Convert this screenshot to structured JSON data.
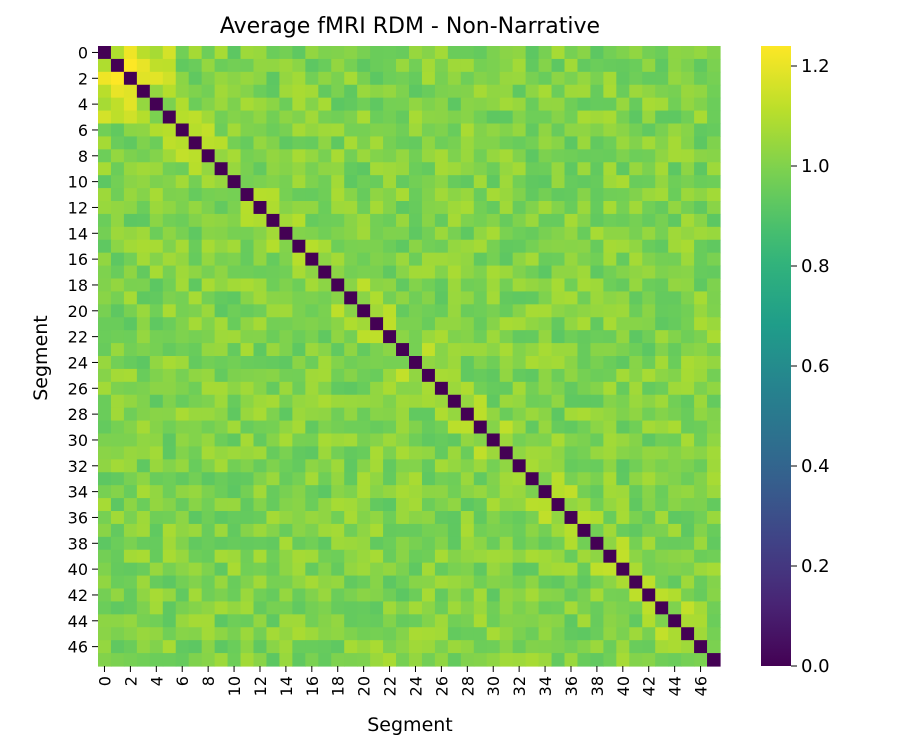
{
  "chart_data": {
    "type": "heatmap",
    "title": "Average fMRI RDM - Non-Narrative",
    "xlabel": "Segment",
    "ylabel": "Segment",
    "n_segments": 48,
    "tick_labels": [
      "0",
      "2",
      "4",
      "6",
      "8",
      "10",
      "12",
      "14",
      "16",
      "18",
      "20",
      "22",
      "24",
      "26",
      "28",
      "30",
      "32",
      "34",
      "36",
      "38",
      "40",
      "42",
      "44",
      "46"
    ],
    "colormap": "viridis",
    "vmin": 0.0,
    "vmax": 1.24,
    "diagonal_value": 0.0,
    "off_diagonal_typical": 1.0,
    "off_diagonal_range": [
      0.85,
      1.24
    ],
    "colorbar": {
      "ticks": [
        0.0,
        0.2,
        0.4,
        0.6,
        0.8,
        1.0,
        1.2
      ],
      "tick_labels": [
        "0.0",
        "0.2",
        "0.4",
        "0.6",
        "0.8",
        "1.0",
        "1.2"
      ]
    }
  }
}
